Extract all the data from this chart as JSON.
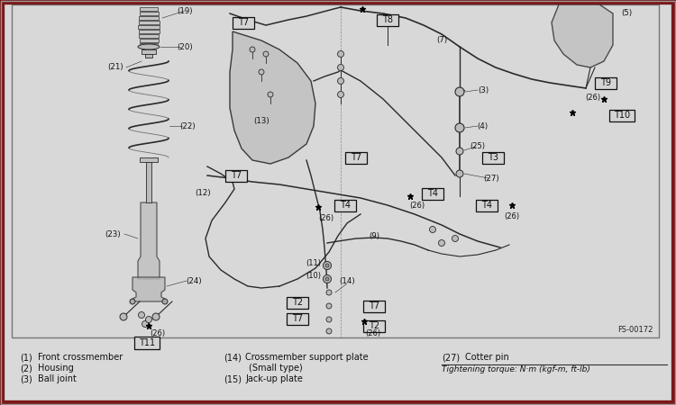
{
  "bg_color": "#d9d9d9",
  "border_color": "#7a1818",
  "diagram_bg": "#d4d4d4",
  "text_color": "#111111",
  "diagram_ref": "FS-00172",
  "torque_label": "Tightening torque: N·m (kgf-m, ft-lb)",
  "line_color": "#2a2a2a",
  "box_fill": "#d4d4d4",
  "box_outline": "#111111",
  "legend_col1": [
    [
      "(1)",
      "Front crossmember"
    ],
    [
      "(2)",
      "Housing"
    ],
    [
      "(3)",
      "Ball joint"
    ]
  ],
  "legend_col2": [
    [
      "(14)",
      "Crossmember support plate"
    ],
    [
      "",
      "(Small type)"
    ],
    [
      "(15)",
      "Jack-up plate"
    ]
  ],
  "legend_col3": [
    [
      "(27)",
      "Cotter pin"
    ]
  ]
}
